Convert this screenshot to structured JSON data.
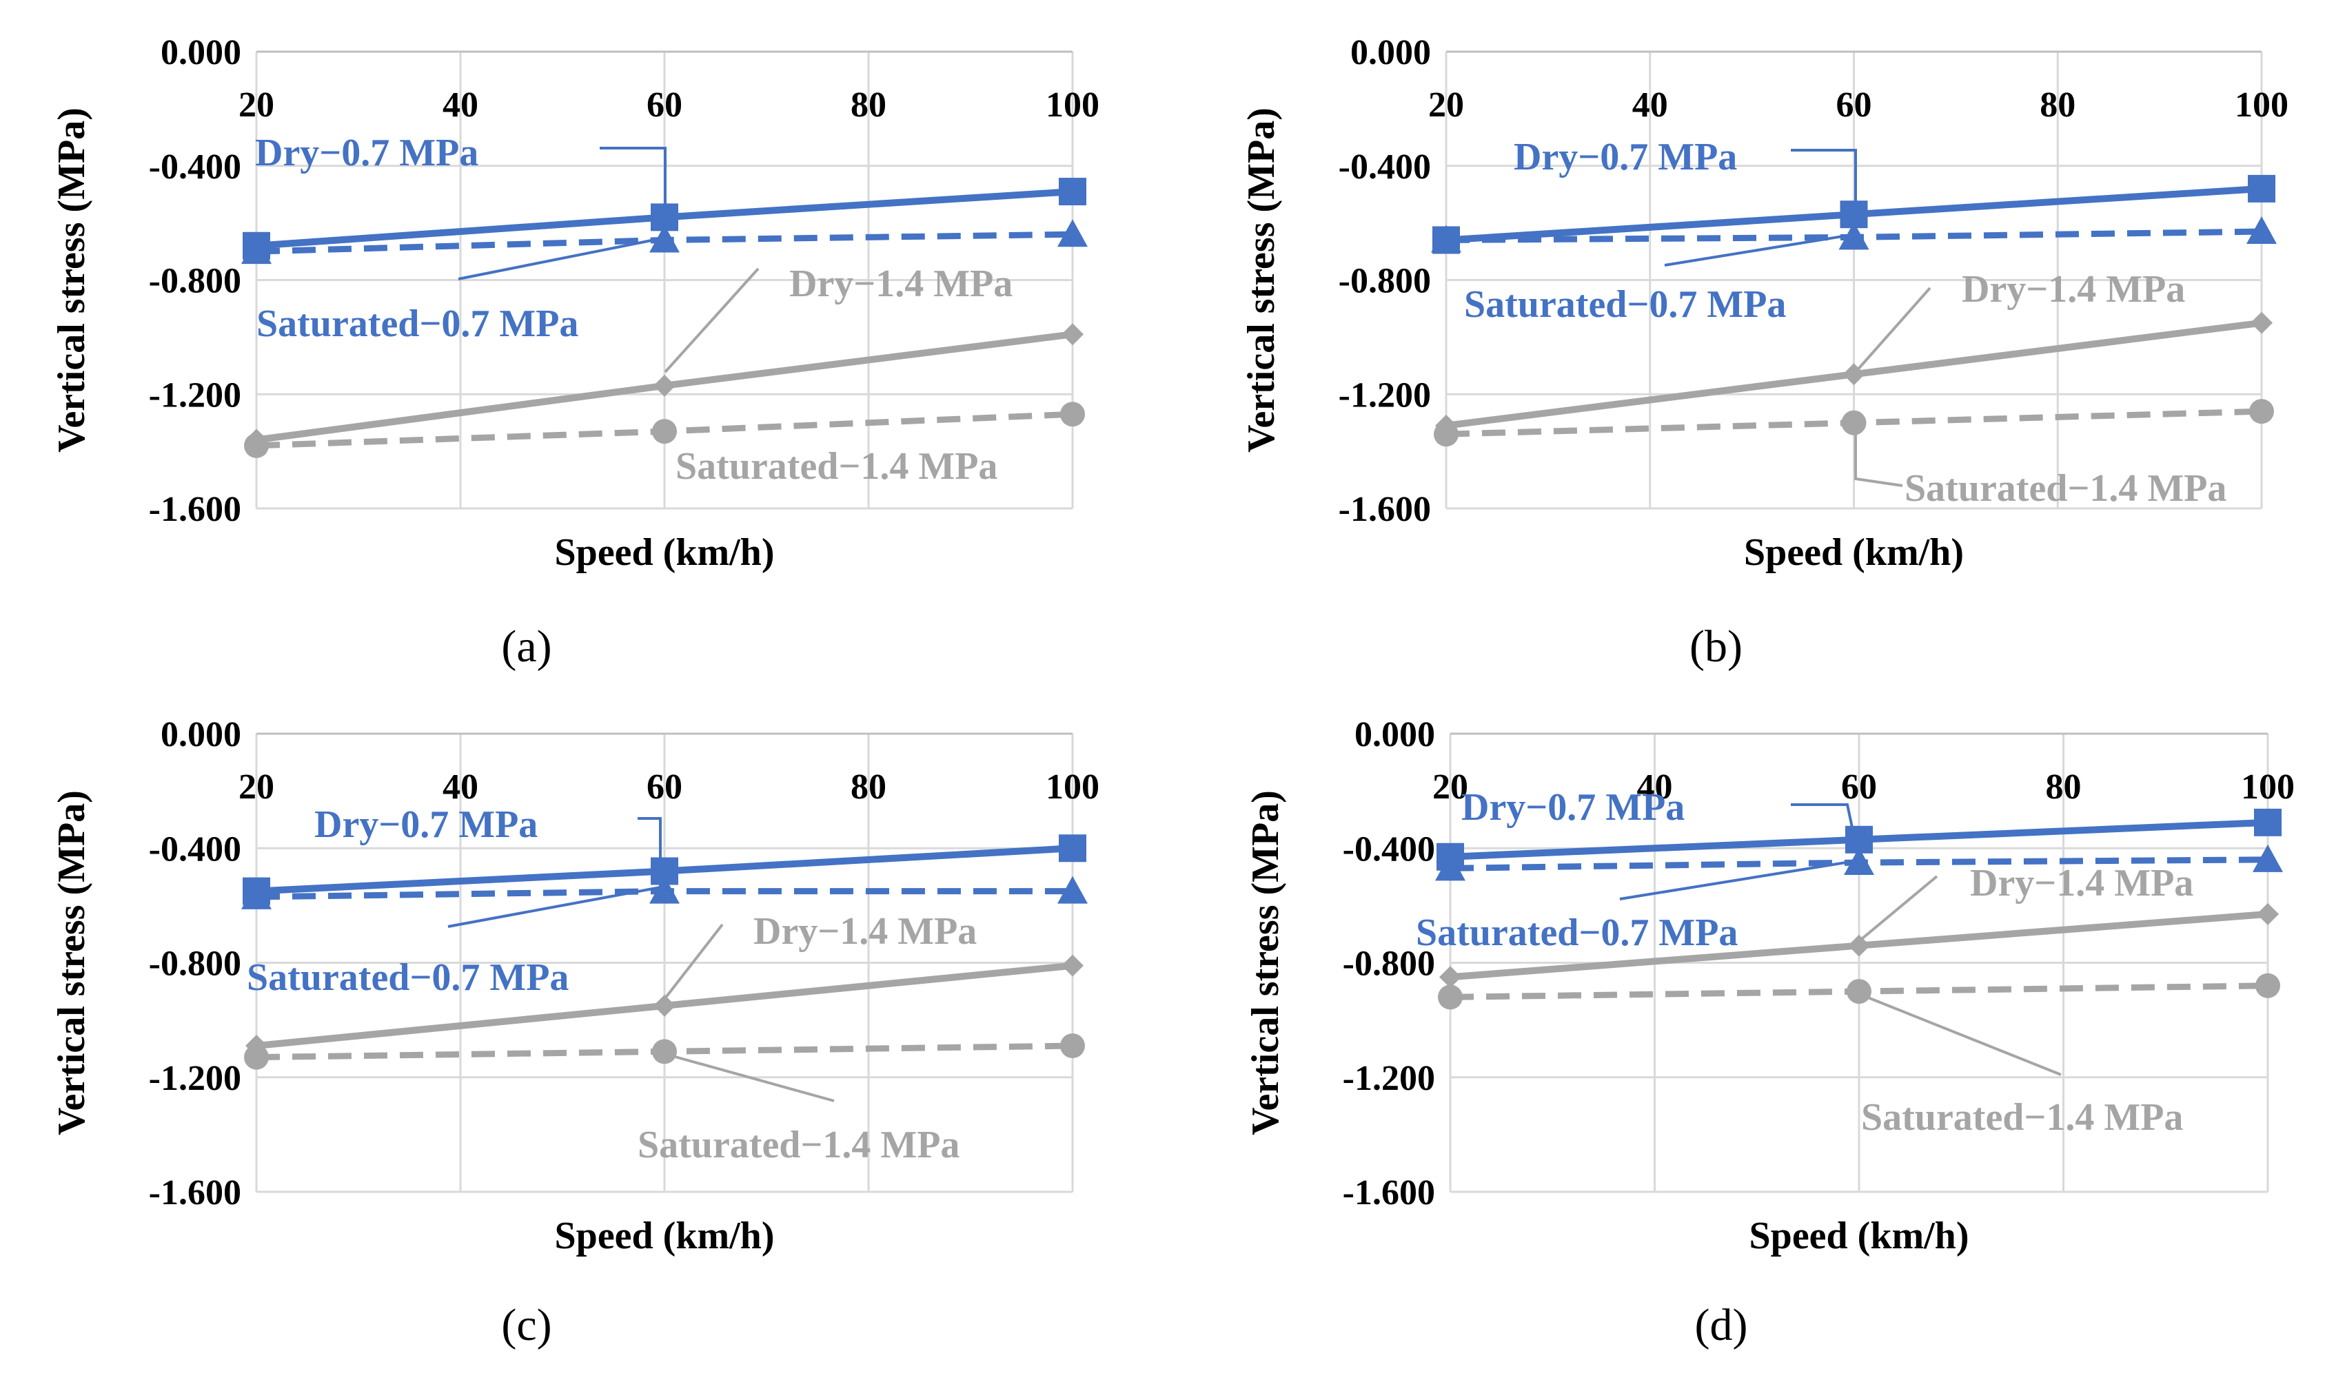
{
  "colors": {
    "blue": "#4472C4",
    "gray": "#A5A5A5",
    "grid": "#D9D9D9",
    "axis": "#BFBFBF"
  },
  "chart_data": [
    {
      "type": "line",
      "caption": "(a)",
      "xlabel": "Speed (km/h)",
      "ylabel": "Vertical stress (MPa)",
      "xticks": [
        "20",
        "40",
        "60",
        "80",
        "100"
      ],
      "yticks": [
        "0.000",
        "-0.400",
        "-0.800",
        "-1.200",
        "-1.600"
      ],
      "xlim": [
        20,
        100
      ],
      "ylim": [
        -1.6,
        0
      ],
      "x": [
        20,
        60,
        100
      ],
      "series": [
        {
          "name": "Dry−0.7 MPa",
          "values": [
            -0.68,
            -0.58,
            -0.49
          ],
          "color": "#4472C4",
          "dash": false,
          "marker": "square"
        },
        {
          "name": "Saturated−0.7 MPa",
          "values": [
            -0.7,
            -0.66,
            -0.64
          ],
          "color": "#4472C4",
          "dash": true,
          "marker": "triangle"
        },
        {
          "name": "Dry−1.4 MPa",
          "values": [
            -1.36,
            -1.17,
            -0.99
          ],
          "color": "#A5A5A5",
          "dash": false,
          "marker": "diamond"
        },
        {
          "name": "Saturated−1.4 MPa",
          "values": [
            -1.38,
            -1.33,
            -1.27
          ],
          "color": "#A5A5A5",
          "dash": true,
          "marker": "circle"
        }
      ]
    },
    {
      "type": "line",
      "caption": "(b)",
      "xlabel": "Speed (km/h)",
      "ylabel": "Vertical stress (MPa)",
      "xticks": [
        "20",
        "40",
        "60",
        "80",
        "100"
      ],
      "yticks": [
        "0.000",
        "-0.400",
        "-0.800",
        "-1.200",
        "-1.600"
      ],
      "xlim": [
        20,
        100
      ],
      "ylim": [
        -1.6,
        0
      ],
      "x": [
        20,
        60,
        100
      ],
      "series": [
        {
          "name": "Dry−0.7 MPa",
          "values": [
            -0.66,
            -0.57,
            -0.48
          ],
          "color": "#4472C4",
          "dash": false,
          "marker": "square"
        },
        {
          "name": "Saturated−0.7 MPa",
          "values": [
            -0.66,
            -0.65,
            -0.63
          ],
          "color": "#4472C4",
          "dash": true,
          "marker": "triangle"
        },
        {
          "name": "Dry−1.4 MPa",
          "values": [
            -1.31,
            -1.13,
            -0.95
          ],
          "color": "#A5A5A5",
          "dash": false,
          "marker": "diamond"
        },
        {
          "name": "Saturated−1.4 MPa",
          "values": [
            -1.34,
            -1.3,
            -1.26
          ],
          "color": "#A5A5A5",
          "dash": true,
          "marker": "circle"
        }
      ]
    },
    {
      "type": "line",
      "caption": "(c)",
      "xlabel": "Speed (km/h)",
      "ylabel": "Vertical stress (MPa)",
      "xticks": [
        "20",
        "40",
        "60",
        "80",
        "100"
      ],
      "yticks": [
        "0.000",
        "-0.400",
        "-0.800",
        "-1.200",
        "-1.600"
      ],
      "xlim": [
        20,
        100
      ],
      "ylim": [
        -1.6,
        0
      ],
      "x": [
        20,
        60,
        100
      ],
      "series": [
        {
          "name": "Dry−0.7 MPa",
          "values": [
            -0.55,
            -0.48,
            -0.4
          ],
          "color": "#4472C4",
          "dash": false,
          "marker": "square"
        },
        {
          "name": "Saturated−0.7 MPa",
          "values": [
            -0.57,
            -0.55,
            -0.55
          ],
          "color": "#4472C4",
          "dash": true,
          "marker": "triangle"
        },
        {
          "name": "Dry−1.4 MPa",
          "values": [
            -1.09,
            -0.95,
            -0.81
          ],
          "color": "#A5A5A5",
          "dash": false,
          "marker": "diamond"
        },
        {
          "name": "Saturated−1.4 MPa",
          "values": [
            -1.13,
            -1.11,
            -1.09
          ],
          "color": "#A5A5A5",
          "dash": true,
          "marker": "circle"
        }
      ]
    },
    {
      "type": "line",
      "caption": "(d)",
      "xlabel": "Speed (km/h)",
      "ylabel": "Vertical stress (MPa)",
      "xticks": [
        "20",
        "40",
        "60",
        "80",
        "100"
      ],
      "yticks": [
        "0.000",
        "-0.400",
        "-0.800",
        "-1.200",
        "-1.600"
      ],
      "xlim": [
        20,
        100
      ],
      "ylim": [
        -1.6,
        0
      ],
      "x": [
        20,
        60,
        100
      ],
      "series": [
        {
          "name": "Dry−0.7 MPa",
          "values": [
            -0.43,
            -0.37,
            -0.31
          ],
          "color": "#4472C4",
          "dash": false,
          "marker": "square"
        },
        {
          "name": "Saturated−0.7 MPa",
          "values": [
            -0.47,
            -0.45,
            -0.44
          ],
          "color": "#4472C4",
          "dash": true,
          "marker": "triangle"
        },
        {
          "name": "Dry−1.4 MPa",
          "values": [
            -0.85,
            -0.74,
            -0.63
          ],
          "color": "#A5A5A5",
          "dash": false,
          "marker": "diamond"
        },
        {
          "name": "Saturated−1.4 MPa",
          "values": [
            -0.92,
            -0.9,
            -0.88
          ],
          "color": "#A5A5A5",
          "dash": true,
          "marker": "circle"
        }
      ]
    }
  ]
}
